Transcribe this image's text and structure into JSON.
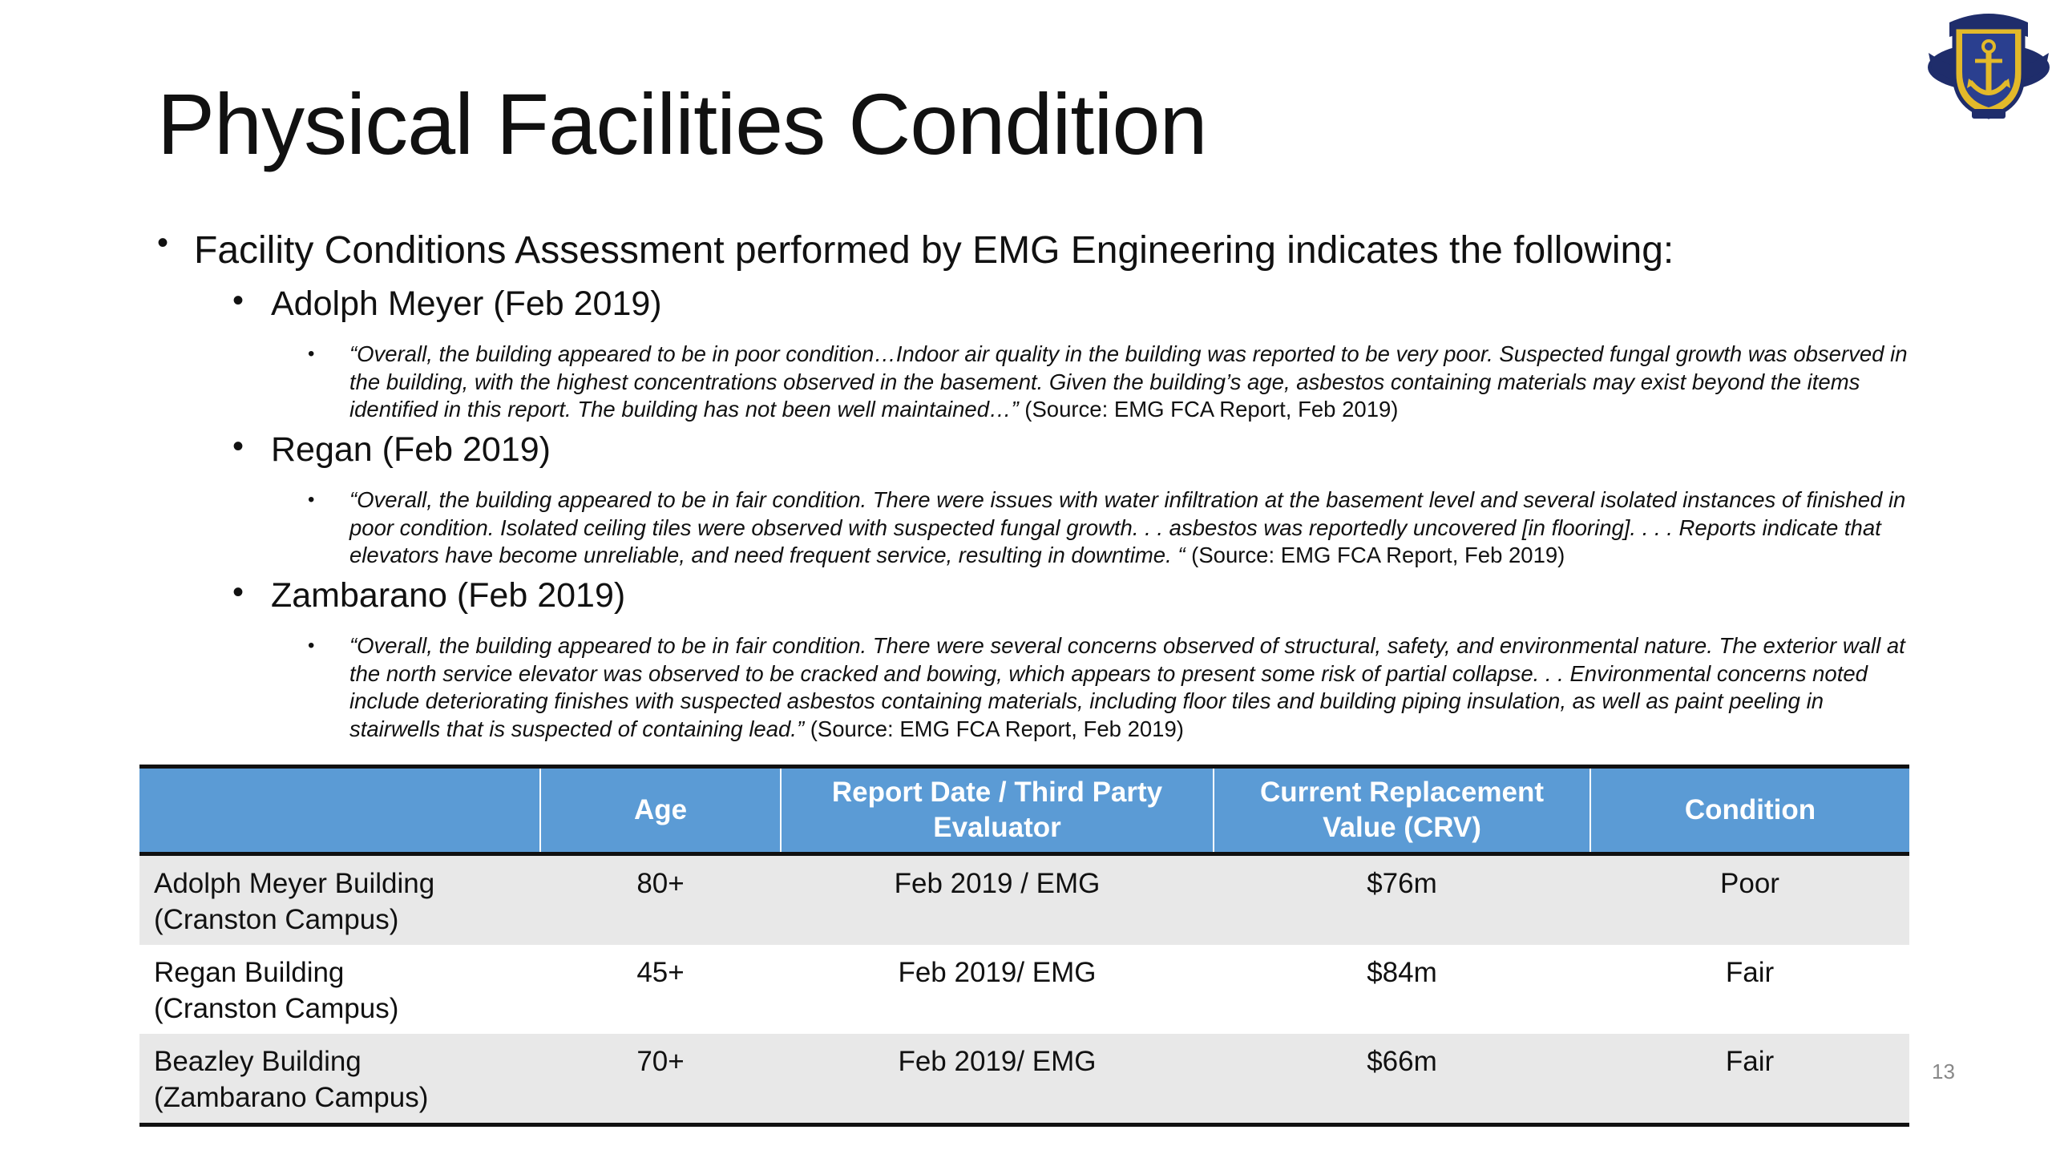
{
  "slide": {
    "title": "Physical Facilities Condition",
    "page_number": "13"
  },
  "intro": "Facility Conditions Assessment performed by EMG Engineering indicates the following:",
  "bullet_glyph": "•",
  "facilities": [
    {
      "heading": "Adolph Meyer (Feb 2019)",
      "quote": "“Overall, the building appeared to be in poor condition…Indoor air quality in the building was reported to be very poor. Suspected fungal growth was observed in the building, with the highest concentrations observed in the basement. Given the building’s age, asbestos containing materials may exist beyond the items identified in this report. The building has not been well maintained…”",
      "source": " (Source: EMG FCA Report, Feb 2019)"
    },
    {
      "heading": "Regan (Feb 2019)",
      "quote": "“Overall, the building appeared to be in fair condition. There were issues with water infiltration at the basement level and several isolated instances  of finished in poor condition. Isolated ceiling tiles were observed with suspected fungal growth. . . asbestos was reportedly uncovered [in flooring]. . . . Reports indicate that elevators have become unreliable, and need frequent service, resulting in downtime. “",
      "source": " (Source: EMG FCA Report, Feb  2019)"
    },
    {
      "heading": "Zambarano (Feb 2019)",
      "quote": "“Overall, the building appeared to be in fair condition. There were several concerns observed of structural, safety, and environmental nature. The exterior wall at the north service elevator was observed to be cracked and bowing, which appears to present some risk of partial collapse. . . Environmental concerns noted include deteriorating finishes with suspected asbestos containing materials, including floor tiles and building piping insulation, as well as paint peeling in stairwells that is suspected of containing lead.”",
      "source": " (Source: EMG FCA Report, Feb 2019)"
    }
  ],
  "table": {
    "headers": [
      "",
      "Age",
      "Report Date / Third Party Evaluator",
      "Current Replacement Value (CRV)",
      "Condition"
    ],
    "rows": [
      {
        "building": "Adolph Meyer Building",
        "campus": "(Cranston Campus)",
        "age": "80+",
        "report": "Feb 2019 / EMG",
        "crv": "$76m",
        "condition": "Poor"
      },
      {
        "building": "Regan Building",
        "campus": "(Cranston Campus)",
        "age": "45+",
        "report": "Feb 2019/ EMG",
        "crv": "$84m",
        "condition": "Fair"
      },
      {
        "building": "Beazley Building",
        "campus": "(Zambarano Campus)",
        "age": "70+",
        "report": "Feb 2019/ EMG",
        "crv": "$66m",
        "condition": "Fair"
      }
    ]
  },
  "colors": {
    "header_fill": "#5b9bd5",
    "row_shade": "#e8e8e8",
    "seal_navy": "#1f2d6b",
    "seal_gold": "#e3b92a"
  },
  "icons": {
    "seal": "state-seal-icon"
  }
}
